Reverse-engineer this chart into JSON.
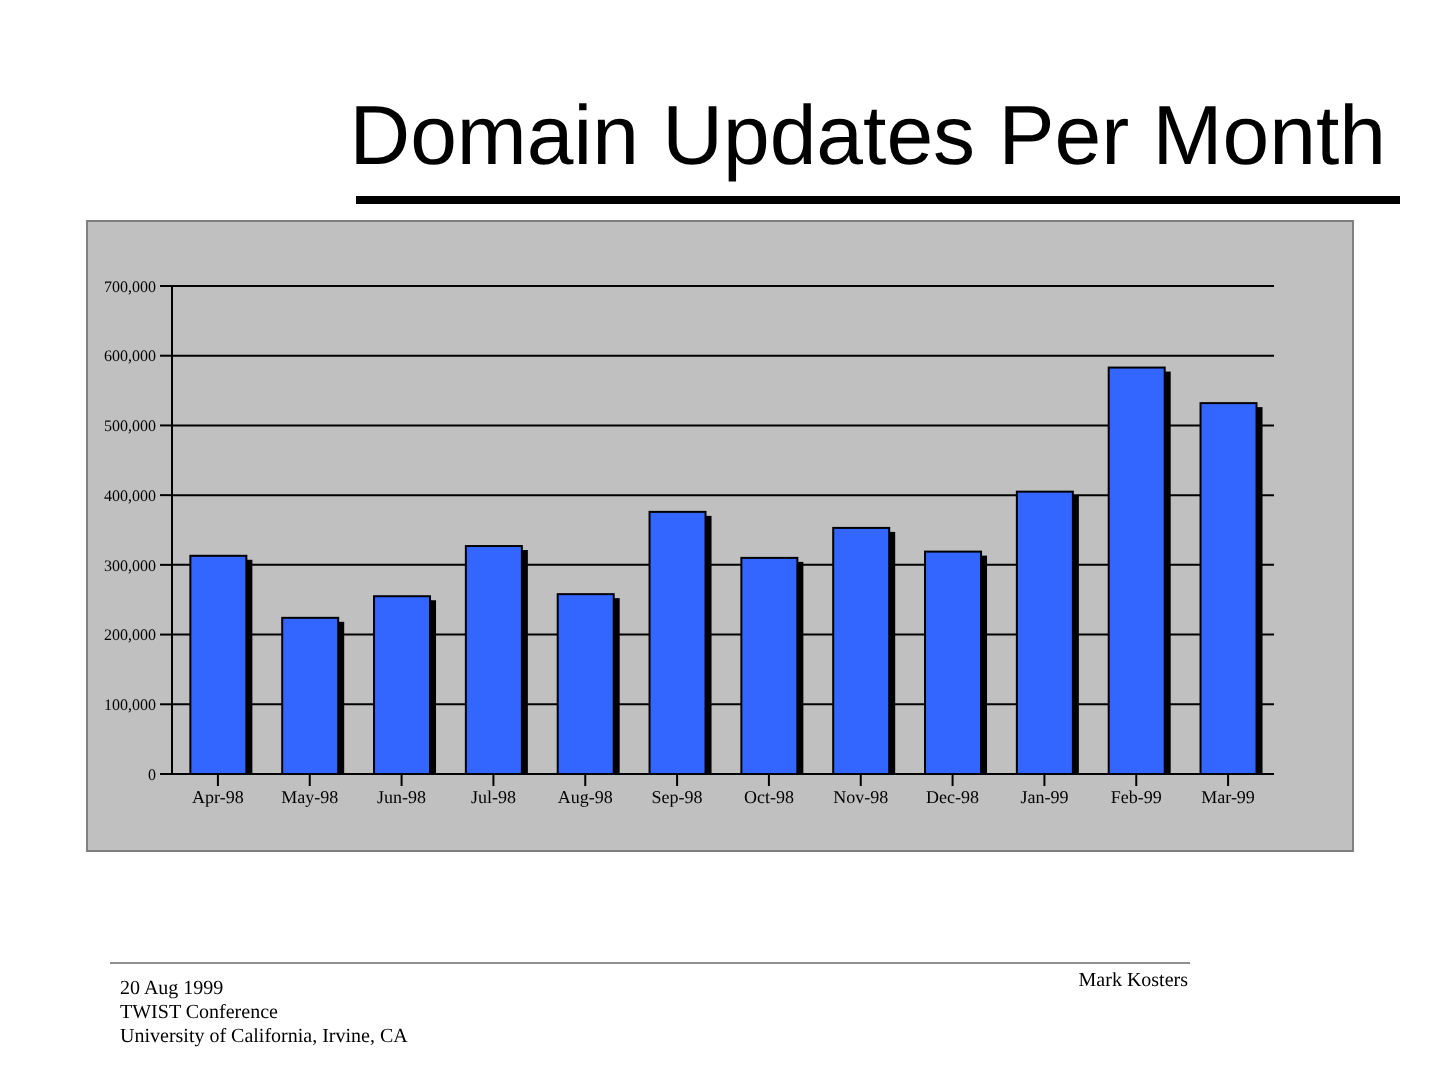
{
  "chart_data": {
    "type": "bar",
    "title": "Domain Updates Per Month",
    "categories": [
      "Apr-98",
      "May-98",
      "Jun-98",
      "Jul-98",
      "Aug-98",
      "Sep-98",
      "Oct-98",
      "Nov-98",
      "Dec-98",
      "Jan-99",
      "Feb-99",
      "Mar-99"
    ],
    "values": [
      313000,
      224000,
      255000,
      327000,
      258000,
      376000,
      310000,
      353000,
      319000,
      405000,
      583000,
      532000
    ],
    "color": "#3366ff",
    "ylim": [
      0,
      700000
    ],
    "yticks": [
      {
        "value": 0,
        "label": "0"
      },
      {
        "value": 100000,
        "label": "100,000"
      },
      {
        "value": 200000,
        "label": "200,000"
      },
      {
        "value": 300000,
        "label": "300,000"
      },
      {
        "value": 400000,
        "label": "400,000"
      },
      {
        "value": 500000,
        "label": "500,000"
      },
      {
        "value": 600000,
        "label": "600,000"
      },
      {
        "value": 700000,
        "label": "700,000"
      }
    ],
    "grid": "y",
    "legend": false,
    "annotations": [
      "20 Aug 1999",
      "TWIST Conference",
      "University of California, Irvine, CA",
      "Mark Kosters"
    ]
  }
}
